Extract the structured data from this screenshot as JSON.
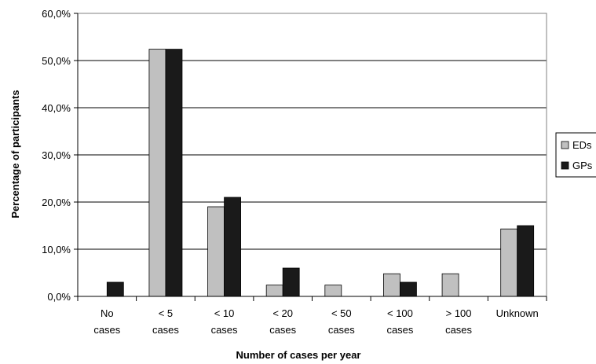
{
  "chart_data": {
    "type": "bar",
    "title": "",
    "xlabel": "Number of cases per year",
    "ylabel": "Percentage of participants",
    "ylim": [
      0,
      60
    ],
    "yticks": [
      0,
      10,
      20,
      30,
      40,
      50,
      60
    ],
    "ytick_labels": [
      "0,0%",
      "10,0%",
      "20,0%",
      "30,0%",
      "40,0%",
      "50,0%",
      "60,0%"
    ],
    "grid": true,
    "legend_position": "right",
    "categories": [
      [
        "No",
        "cases"
      ],
      [
        "< 5",
        "cases"
      ],
      [
        "< 10",
        "cases"
      ],
      [
        "< 20",
        "cases"
      ],
      [
        "< 50",
        "cases"
      ],
      [
        "< 100",
        "cases"
      ],
      [
        "> 100",
        "cases"
      ],
      [
        "Unknown"
      ]
    ],
    "series": [
      {
        "name": "EDs",
        "color": "#c0c0c0",
        "values": [
          0,
          52.4,
          19.0,
          2.4,
          2.4,
          4.8,
          4.8,
          14.3
        ]
      },
      {
        "name": "GPs",
        "color": "#1a1a1a",
        "values": [
          3.0,
          52.4,
          21.0,
          6.0,
          0,
          3.0,
          0,
          15.0
        ]
      }
    ]
  }
}
